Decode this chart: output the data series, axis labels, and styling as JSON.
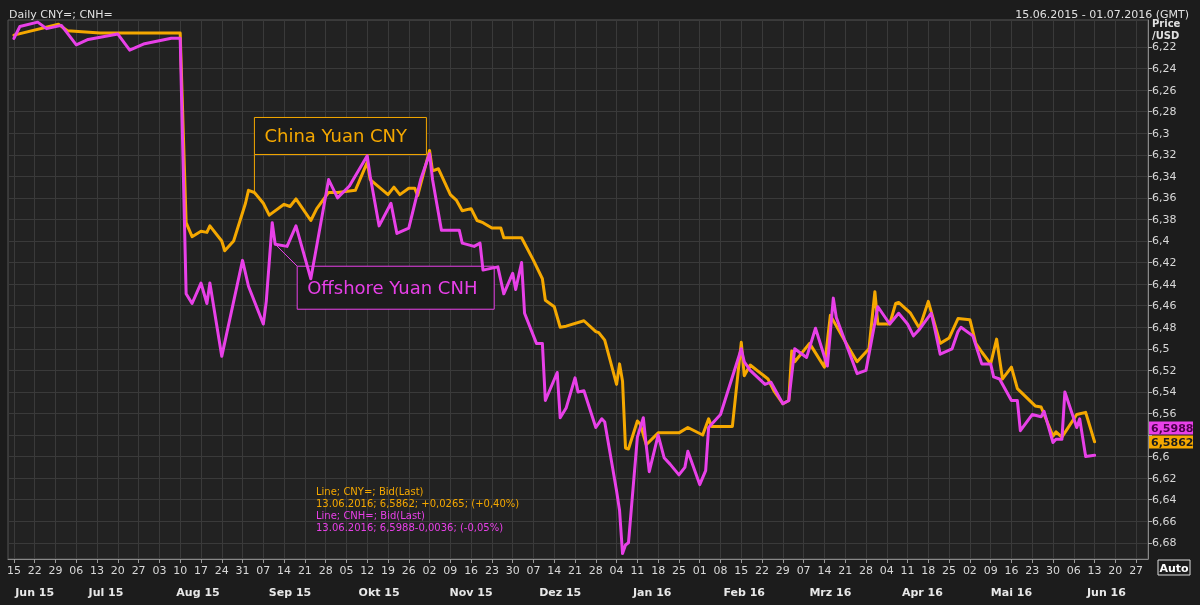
{
  "chart_data": {
    "type": "line",
    "title": "Daily CNY=; CNH=",
    "subtitle": "15.06.2015 - 01.07.2016 (GMT)",
    "ylabel": "Price\n/USD",
    "annotations": [
      "Line; CNY=; Bid(Last)",
      "13.06.2016; 6,5862; +0,0265; (+0,40%)",
      "Line; CNH=; Bid(Last)",
      "13.06.2016; 6,5988-0,0036; (-0,05%)",
      "Auto",
      "6,5988",
      "6,5862"
    ],
    "xlim": [
      "2015-06-13",
      "2016-07-01"
    ],
    "xticks": [
      {
        "value": "2015-06-15",
        "label": "15"
      },
      {
        "value": "2015-06-22",
        "label": "22"
      },
      {
        "value": "2015-06-29",
        "label": "29"
      },
      {
        "value": "2015-07-06",
        "label": "06"
      },
      {
        "value": "2015-07-13",
        "label": "13"
      },
      {
        "value": "2015-07-20",
        "label": "20"
      },
      {
        "value": "2015-07-27",
        "label": "27"
      },
      {
        "value": "2015-08-03",
        "label": "03"
      },
      {
        "value": "2015-08-10",
        "label": "10"
      },
      {
        "value": "2015-08-17",
        "label": "17"
      },
      {
        "value": "2015-08-24",
        "label": "24"
      },
      {
        "value": "2015-08-31",
        "label": "31"
      },
      {
        "value": "2015-09-07",
        "label": "07"
      },
      {
        "value": "2015-09-14",
        "label": "14"
      },
      {
        "value": "2015-09-21",
        "label": "21"
      },
      {
        "value": "2015-09-28",
        "label": "28"
      },
      {
        "value": "2015-10-05",
        "label": "05"
      },
      {
        "value": "2015-10-12",
        "label": "12"
      },
      {
        "value": "2015-10-19",
        "label": "19"
      },
      {
        "value": "2015-10-26",
        "label": "26"
      },
      {
        "value": "2015-11-02",
        "label": "02"
      },
      {
        "value": "2015-11-09",
        "label": "09"
      },
      {
        "value": "2015-11-16",
        "label": "16"
      },
      {
        "value": "2015-11-23",
        "label": "23"
      },
      {
        "value": "2015-11-30",
        "label": "30"
      },
      {
        "value": "2015-12-07",
        "label": "07"
      },
      {
        "value": "2015-12-14",
        "label": "14"
      },
      {
        "value": "2015-12-21",
        "label": "21"
      },
      {
        "value": "2015-12-28",
        "label": "28"
      },
      {
        "value": "2016-01-04",
        "label": "04"
      },
      {
        "value": "2016-01-11",
        "label": "11"
      },
      {
        "value": "2016-01-18",
        "label": "18"
      },
      {
        "value": "2016-01-25",
        "label": "25"
      },
      {
        "value": "2016-02-01",
        "label": "01"
      },
      {
        "value": "2016-02-08",
        "label": "08"
      },
      {
        "value": "2016-02-15",
        "label": "15"
      },
      {
        "value": "2016-02-22",
        "label": "22"
      },
      {
        "value": "2016-02-29",
        "label": "29"
      },
      {
        "value": "2016-03-07",
        "label": "07"
      },
      {
        "value": "2016-03-14",
        "label": "14"
      },
      {
        "value": "2016-03-21",
        "label": "21"
      },
      {
        "value": "2016-03-28",
        "label": "28"
      },
      {
        "value": "2016-04-04",
        "label": "04"
      },
      {
        "value": "2016-04-11",
        "label": "11"
      },
      {
        "value": "2016-04-18",
        "label": "18"
      },
      {
        "value": "2016-04-25",
        "label": "25"
      },
      {
        "value": "2016-05-02",
        "label": "02"
      },
      {
        "value": "2016-05-09",
        "label": "09"
      },
      {
        "value": "2016-05-16",
        "label": "16"
      },
      {
        "value": "2016-05-23",
        "label": "23"
      },
      {
        "value": "2016-05-30",
        "label": "30"
      },
      {
        "value": "2016-06-06",
        "label": "06"
      },
      {
        "value": "2016-06-13",
        "label": "13"
      },
      {
        "value": "2016-06-20",
        "label": "20"
      },
      {
        "value": "2016-06-27",
        "label": "27"
      }
    ],
    "x2lim": [
      "2015-06-13",
      "2016-07-01"
    ],
    "x2ticks": [
      {
        "value": "2015-06-22",
        "label": "Jun 15"
      },
      {
        "value": "2015-07-16",
        "label": "Jul 15"
      },
      {
        "value": "2015-08-16",
        "label": "Aug 15"
      },
      {
        "value": "2015-09-16",
        "label": "Sep 15"
      },
      {
        "value": "2015-10-16",
        "label": "Okt 15"
      },
      {
        "value": "2015-11-16",
        "label": "Nov 15"
      },
      {
        "value": "2015-12-16",
        "label": "Dez 15"
      },
      {
        "value": "2016-01-16",
        "label": "Jan 16"
      },
      {
        "value": "2016-02-16",
        "label": "Feb 16"
      },
      {
        "value": "2016-03-16",
        "label": "Mrz 16"
      },
      {
        "value": "2016-04-16",
        "label": "Apr 16"
      },
      {
        "value": "2016-05-16",
        "label": "Mai 16"
      },
      {
        "value": "2016-06-17",
        "label": "Jun 16"
      }
    ],
    "ylim": [
      6.695,
      6.195
    ],
    "yticks": [
      {
        "value": 6.22,
        "label": "6,22"
      },
      {
        "value": 6.24,
        "label": "6,24"
      },
      {
        "value": 6.26,
        "label": "6,26"
      },
      {
        "value": 6.28,
        "label": "6,28"
      },
      {
        "value": 6.3,
        "label": "6,3"
      },
      {
        "value": 6.32,
        "label": "6,32"
      },
      {
        "value": 6.34,
        "label": "6,34"
      },
      {
        "value": 6.36,
        "label": "6,36"
      },
      {
        "value": 6.38,
        "label": "6,38"
      },
      {
        "value": 6.4,
        "label": "6,4"
      },
      {
        "value": 6.42,
        "label": "6,42"
      },
      {
        "value": 6.44,
        "label": "6,44"
      },
      {
        "value": 6.46,
        "label": "6,46"
      },
      {
        "value": 6.48,
        "label": "6,48"
      },
      {
        "value": 6.5,
        "label": "6,5"
      },
      {
        "value": 6.52,
        "label": "6,52"
      },
      {
        "value": 6.54,
        "label": "6,54"
      },
      {
        "value": 6.56,
        "label": "6,56"
      },
      {
        "value": 6.58,
        "label": null
      },
      {
        "value": 6.6,
        "label": "6,6"
      },
      {
        "value": 6.62,
        "label": "6,62"
      },
      {
        "value": 6.64,
        "label": "6,64"
      },
      {
        "value": 6.66,
        "label": "6,66"
      },
      {
        "value": 6.68,
        "label": "6,68"
      }
    ],
    "grid": true,
    "legend": false,
    "marker": "none",
    "line_style": "solid",
    "series": [
      {
        "name": "China Yuan CNY",
        "color": "#f5a800",
        "x": [
          "2015-06-15",
          "2015-06-30",
          "2015-07-03",
          "2015-07-14",
          "2015-07-27",
          "2015-08-10",
          "2015-08-12",
          "2015-08-14",
          "2015-08-17",
          "2015-08-19",
          "2015-08-20",
          "2015-08-24",
          "2015-08-25",
          "2015-08-28",
          "2015-09-01",
          "2015-09-02",
          "2015-09-04",
          "2015-09-07",
          "2015-09-09",
          "2015-09-14",
          "2015-09-16",
          "2015-09-18",
          "2015-09-23",
          "2015-09-25",
          "2015-09-29",
          "2015-10-02",
          "2015-10-08",
          "2015-10-12",
          "2015-10-13",
          "2015-10-19",
          "2015-10-21",
          "2015-10-23",
          "2015-10-26",
          "2015-10-28",
          "2015-10-29",
          "2015-11-02",
          "2015-11-03",
          "2015-11-05",
          "2015-11-09",
          "2015-11-11",
          "2015-11-13",
          "2015-11-16",
          "2015-11-18",
          "2015-11-20",
          "2015-11-23",
          "2015-11-26",
          "2015-11-27",
          "2015-12-03",
          "2015-12-07",
          "2015-12-10",
          "2015-12-11",
          "2015-12-14",
          "2015-12-16",
          "2015-12-18",
          "2015-12-24",
          "2015-12-28",
          "2015-12-29",
          "2015-12-31",
          "2016-01-04",
          "2016-01-05",
          "2016-01-06",
          "2016-01-07",
          "2016-01-08",
          "2016-01-11",
          "2016-01-12",
          "2016-01-14",
          "2016-01-18",
          "2016-01-25",
          "2016-01-28",
          "2016-02-02",
          "2016-02-04",
          "2016-02-05",
          "2016-02-12",
          "2016-02-15",
          "2016-02-16",
          "2016-02-18",
          "2016-02-24",
          "2016-02-26",
          "2016-02-29",
          "2016-03-02",
          "2016-03-03",
          "2016-03-04",
          "2016-03-09",
          "2016-03-14",
          "2016-03-16",
          "2016-03-22",
          "2016-03-25",
          "2016-03-29",
          "2016-03-31",
          "2016-04-01",
          "2016-04-05",
          "2016-04-07",
          "2016-04-08",
          "2016-04-12",
          "2016-04-15",
          "2016-04-18",
          "2016-04-22",
          "2016-04-25",
          "2016-04-28",
          "2016-05-02",
          "2016-05-04",
          "2016-05-06",
          "2016-05-09",
          "2016-05-11",
          "2016-05-13",
          "2016-05-16",
          "2016-05-18",
          "2016-05-24",
          "2016-05-26",
          "2016-05-30",
          "2016-05-31",
          "2016-06-02",
          "2016-06-07",
          "2016-06-10",
          "2016-06-13"
        ],
        "values": [
          6.209,
          6.199,
          6.205,
          6.207,
          6.207,
          6.207,
          6.383,
          6.396,
          6.391,
          6.392,
          6.386,
          6.4,
          6.409,
          6.4,
          6.365,
          6.353,
          6.355,
          6.365,
          6.376,
          6.366,
          6.368,
          6.361,
          6.381,
          6.37,
          6.355,
          6.355,
          6.353,
          6.327,
          6.343,
          6.357,
          6.35,
          6.357,
          6.351,
          6.351,
          6.358,
          6.316,
          6.335,
          6.333,
          6.357,
          6.362,
          6.372,
          6.37,
          6.381,
          6.383,
          6.388,
          6.388,
          6.397,
          6.397,
          6.418,
          6.435,
          6.455,
          6.461,
          6.48,
          6.479,
          6.474,
          6.484,
          6.485,
          6.492,
          6.533,
          6.514,
          6.53,
          6.592,
          6.593,
          6.567,
          6.57,
          6.589,
          6.578,
          6.578,
          6.573,
          6.58,
          6.565,
          6.572,
          6.572,
          6.494,
          6.525,
          6.515,
          6.528,
          6.539,
          6.551,
          6.548,
          6.502,
          6.512,
          6.495,
          6.517,
          6.469,
          6.498,
          6.512,
          6.5,
          6.447,
          6.477,
          6.477,
          6.458,
          6.457,
          6.467,
          6.481,
          6.456,
          6.495,
          6.49,
          6.472,
          6.473,
          6.495,
          6.503,
          6.514,
          6.491,
          6.528,
          6.517,
          6.537,
          6.553,
          6.554,
          6.581,
          6.577,
          6.582,
          6.561,
          6.559,
          6.5862
        ]
      },
      {
        "name": "Offshore Yuan CNH",
        "color": "#e840e8",
        "x": [
          "2015-06-15",
          "2015-06-17",
          "2015-06-23",
          "2015-06-26",
          "2015-07-01",
          "2015-07-06",
          "2015-07-10",
          "2015-07-20",
          "2015-07-24",
          "2015-07-29",
          "2015-08-07",
          "2015-08-10",
          "2015-08-12",
          "2015-08-14",
          "2015-08-17",
          "2015-08-19",
          "2015-08-20",
          "2015-08-24",
          "2015-08-31",
          "2015-09-02",
          "2015-09-07",
          "2015-09-08",
          "2015-09-10",
          "2015-09-11",
          "2015-09-15",
          "2015-09-18",
          "2015-09-23",
          "2015-09-29",
          "2015-10-02",
          "2015-10-06",
          "2015-10-12",
          "2015-10-13",
          "2015-10-16",
          "2015-10-20",
          "2015-10-22",
          "2015-10-26",
          "2015-10-30",
          "2015-11-02",
          "2015-11-03",
          "2015-11-06",
          "2015-11-12",
          "2015-11-13",
          "2015-11-17",
          "2015-11-19",
          "2015-11-20",
          "2015-11-25",
          "2015-11-27",
          "2015-11-30",
          "2015-12-01",
          "2015-12-03",
          "2015-12-04",
          "2015-12-08",
          "2015-12-10",
          "2015-12-11",
          "2015-12-15",
          "2015-12-16",
          "2015-12-18",
          "2015-12-21",
          "2015-12-22",
          "2015-12-24",
          "2015-12-28",
          "2015-12-30",
          "2015-12-31",
          "2016-01-04",
          "2016-01-05",
          "2016-01-06",
          "2016-01-07",
          "2016-01-08",
          "2016-01-11",
          "2016-01-13",
          "2016-01-14",
          "2016-01-15",
          "2016-01-18",
          "2016-01-20",
          "2016-01-22",
          "2016-01-25",
          "2016-01-27",
          "2016-01-28",
          "2016-02-01",
          "2016-02-03",
          "2016-02-04",
          "2016-02-05",
          "2016-02-08",
          "2016-02-15",
          "2016-02-16",
          "2016-02-18",
          "2016-02-23",
          "2016-02-25",
          "2016-02-29",
          "2016-03-02",
          "2016-03-04",
          "2016-03-08",
          "2016-03-11",
          "2016-03-15",
          "2016-03-17",
          "2016-03-18",
          "2016-03-25",
          "2016-03-28",
          "2016-04-01",
          "2016-04-05",
          "2016-04-08",
          "2016-04-11",
          "2016-04-13",
          "2016-04-15",
          "2016-04-19",
          "2016-04-20",
          "2016-04-22",
          "2016-04-26",
          "2016-04-28",
          "2016-04-29",
          "2016-05-03",
          "2016-05-06",
          "2016-05-09",
          "2016-05-10",
          "2016-05-12",
          "2016-05-16",
          "2016-05-18",
          "2016-05-19",
          "2016-05-23",
          "2016-05-26",
          "2016-05-27",
          "2016-05-30",
          "2016-05-31",
          "2016-06-02",
          "2016-06-03",
          "2016-06-07",
          "2016-06-08",
          "2016-06-10",
          "2016-06-13"
        ],
        "values": [
          6.212,
          6.201,
          6.197,
          6.203,
          6.2,
          6.218,
          6.213,
          6.208,
          6.223,
          6.217,
          6.212,
          6.212,
          6.449,
          6.458,
          6.439,
          6.458,
          6.439,
          6.507,
          6.418,
          6.442,
          6.477,
          6.456,
          6.383,
          6.403,
          6.405,
          6.386,
          6.435,
          6.343,
          6.36,
          6.349,
          6.321,
          6.34,
          6.386,
          6.365,
          6.393,
          6.388,
          6.343,
          6.319,
          6.343,
          6.39,
          6.39,
          6.402,
          6.405,
          6.402,
          6.427,
          6.424,
          6.449,
          6.43,
          6.445,
          6.42,
          6.467,
          6.495,
          6.495,
          6.548,
          6.522,
          6.564,
          6.555,
          6.527,
          6.54,
          6.539,
          6.573,
          6.565,
          6.568,
          6.632,
          6.65,
          6.69,
          6.682,
          6.68,
          6.582,
          6.564,
          6.59,
          6.614,
          6.58,
          6.601,
          6.607,
          6.617,
          6.61,
          6.595,
          6.626,
          6.613,
          6.573,
          6.57,
          6.561,
          6.5,
          6.512,
          6.52,
          6.533,
          6.531,
          6.551,
          6.548,
          6.5,
          6.508,
          6.481,
          6.516,
          6.453,
          6.471,
          6.523,
          6.52,
          6.461,
          6.477,
          6.467,
          6.477,
          6.488,
          6.482,
          6.467,
          6.479,
          6.505,
          6.5,
          6.484,
          6.48,
          6.488,
          6.514,
          6.514,
          6.526,
          6.528,
          6.548,
          6.548,
          6.576,
          6.561,
          6.563,
          6.558,
          6.587,
          6.584,
          6.584,
          6.54,
          6.573,
          6.565,
          6.6,
          6.5988
        ]
      }
    ]
  }
}
